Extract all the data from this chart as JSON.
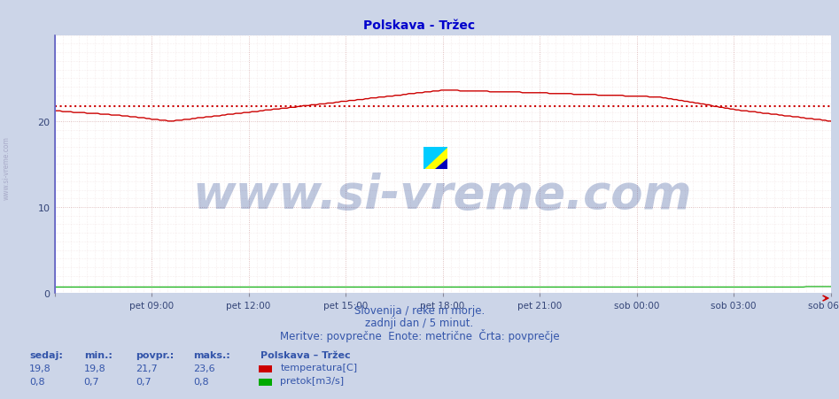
{
  "title": "Polskava - Tržec",
  "title_color": "#0000cc",
  "title_fontsize": 10,
  "bg_color": "#ccd5e8",
  "plot_bg_color": "#ffffff",
  "x_tick_labels": [
    "pet 09:00",
    "pet 12:00",
    "pet 15:00",
    "pet 18:00",
    "pet 21:00",
    "sob 00:00",
    "sob 03:00",
    "sob 06:00"
  ],
  "x_tick_positions_norm": [
    0.125,
    0.25,
    0.375,
    0.5,
    0.625,
    0.75,
    0.875,
    1.0
  ],
  "y_ticks": [
    0,
    10,
    20
  ],
  "ylim": [
    0,
    30
  ],
  "temp_color": "#cc0000",
  "avg_color": "#cc0000",
  "flow_color": "#00aa00",
  "watermark_text": "www.si-vreme.com",
  "watermark_color": "#1a3a8a",
  "watermark_alpha": 0.28,
  "watermark_fontsize": 38,
  "subtitle1": "Slovenija / reke in morje.",
  "subtitle2": "zadnji dan / 5 minut.",
  "subtitle3": "Meritve: povprečne  Enote: metrične  Črta: povprečje",
  "subtitle_color": "#3355aa",
  "subtitle_fontsize": 8.5,
  "legend_title": "Polskava – Tržec",
  "legend_items": [
    "temperatura[C]",
    "pretok[m3/s]"
  ],
  "legend_colors": [
    "#cc0000",
    "#00aa00"
  ],
  "stats_headers": [
    "sedaj:",
    "min.:",
    "povpr.:",
    "maks.:"
  ],
  "stats_temp": [
    "19,8",
    "19,8",
    "21,7",
    "23,6"
  ],
  "stats_flow": [
    "0,8",
    "0,7",
    "0,7",
    "0,8"
  ],
  "avg_value": 21.7,
  "n_points": 288,
  "left_spine_color": "#6666bb",
  "tick_label_color": "#334477",
  "grid_major_color": "#cc9999",
  "grid_minor_color": "#ddbbbb"
}
